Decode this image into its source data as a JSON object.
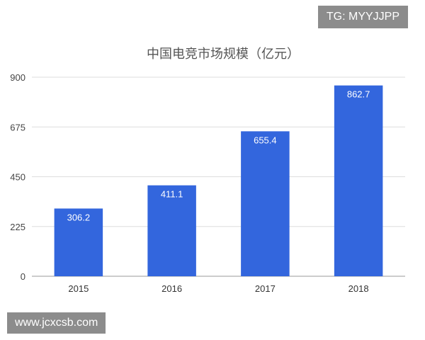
{
  "chart_data": {
    "type": "bar",
    "title": "中国电竞市场规模（亿元）",
    "categories": [
      "2015",
      "2016",
      "2017",
      "2018"
    ],
    "values": [
      306.2,
      411.1,
      655.4,
      862.7
    ],
    "ylim": [
      0,
      900
    ],
    "yticks": [
      0,
      225,
      450,
      675,
      900
    ],
    "grid": true,
    "bar_color": "#3366dd",
    "grid_color": "#dddddd"
  },
  "badges": {
    "tg": "TG: MYYJJPP",
    "site": "www.jcxcsb.com"
  }
}
